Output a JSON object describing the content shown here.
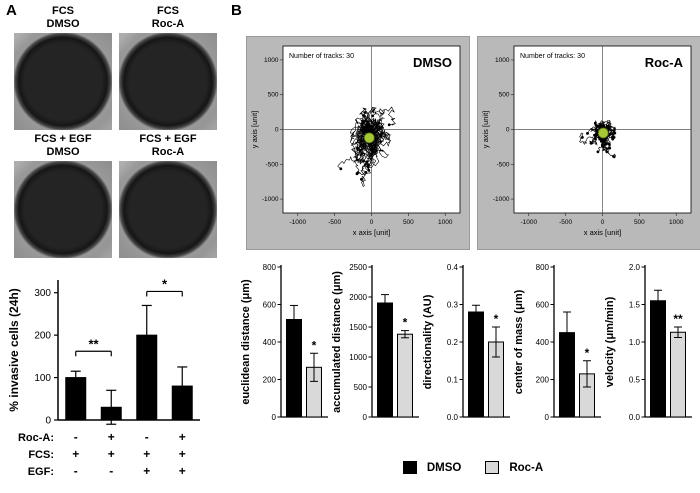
{
  "panel_a": {
    "label": "A",
    "well_labels": [
      {
        "line1": "FCS",
        "line2": "DMSO"
      },
      {
        "line1": "FCS",
        "line2": "Roc-A"
      },
      {
        "line1": "FCS + EGF",
        "line2": "DMSO"
      },
      {
        "line1": "FCS + EGF",
        "line2": "Roc-A"
      }
    ]
  },
  "panel_b": {
    "label": "B",
    "legend": [
      {
        "label": "DMSO",
        "color": "#000000"
      },
      {
        "label": "Roc-A",
        "color": "#d9d9d9"
      }
    ]
  },
  "chart_data": [
    {
      "id": "invasion",
      "type": "bar",
      "ylabel": "% invasive cells (24h)",
      "ylim": [
        0,
        330
      ],
      "yticks": [
        0,
        100,
        200,
        300
      ],
      "ytick_labels": [
        "0",
        "100",
        "200",
        "300"
      ],
      "categories": [
        "FCS",
        "FCS + Roc-A",
        "FCS + EGF",
        "FCS + EGF + Roc-A"
      ],
      "values": [
        100,
        30,
        200,
        80
      ],
      "errors": [
        15,
        40,
        70,
        45
      ],
      "bar_color": "#000000",
      "significance": [
        {
          "from": 0,
          "to": 1,
          "label": "**",
          "y": 162
        },
        {
          "from": 2,
          "to": 3,
          "label": "*",
          "y": 303
        }
      ],
      "condition_rows": [
        {
          "label": "Roc-A:",
          "signs": [
            "-",
            "+",
            "-",
            "+"
          ]
        },
        {
          "label": "FCS:",
          "signs": [
            "+",
            "+",
            "+",
            "+"
          ]
        },
        {
          "label": "EGF:",
          "signs": [
            "-",
            "-",
            "+",
            "+"
          ]
        }
      ]
    },
    {
      "id": "tracks_dmso",
      "type": "scatter-tracks",
      "title": "DMSO",
      "annotation": "Number of tracks: 30",
      "annotation_color": "#dd2222",
      "xlabel": "x axis [unit]",
      "ylabel": "y axis [unit]",
      "xlim": [
        -1200,
        1200
      ],
      "ylim": [
        -1200,
        1200
      ],
      "xticks": [
        -1000,
        -500,
        0,
        500,
        1000
      ],
      "yticks": [
        -1000,
        -500,
        0,
        500,
        1000
      ],
      "n_tracks": 30,
      "seed": 7,
      "step": 55,
      "bias_y": -6,
      "center_of_mass": [
        -30,
        -120
      ],
      "com_color": "#a6c836"
    },
    {
      "id": "tracks_roca",
      "type": "scatter-tracks",
      "title": "Roc-A",
      "annotation": "Number of tracks: 30",
      "annotation_color": "#dd2222",
      "xlabel": "x axis [unit]",
      "ylabel": "y axis [unit]",
      "xlim": [
        -1200,
        1200
      ],
      "ylim": [
        -1200,
        1200
      ],
      "xticks": [
        -1000,
        -500,
        0,
        500,
        1000
      ],
      "yticks": [
        -1000,
        -500,
        0,
        500,
        1000
      ],
      "n_tracks": 30,
      "seed": 13,
      "step": 26,
      "bias_y": -2,
      "center_of_mass": [
        10,
        -50
      ],
      "com_color": "#a6c836"
    },
    {
      "id": "euclidean_distance",
      "type": "bar",
      "ylabel": "euclidean distance (μm)",
      "ylim": [
        0,
        800
      ],
      "yticks": [
        0,
        200,
        400,
        600,
        800
      ],
      "ytick_labels": [
        "0",
        "200",
        "400",
        "600",
        "800"
      ],
      "categories": [
        "DMSO",
        "Roc-A"
      ],
      "values": [
        520,
        265
      ],
      "errors": [
        75,
        75
      ],
      "colors": [
        "#000000",
        "#d9d9d9"
      ],
      "significance_labels": [
        "",
        "*"
      ]
    },
    {
      "id": "accumulated_distance",
      "type": "bar",
      "ylabel": "accumulated distance (μm)",
      "ylim": [
        0,
        2500
      ],
      "yticks": [
        0,
        500,
        1000,
        1500,
        2000,
        2500
      ],
      "ytick_labels": [
        "0",
        "500",
        "1000",
        "1500",
        "2000",
        "2500"
      ],
      "categories": [
        "DMSO",
        "Roc-A"
      ],
      "values": [
        1900,
        1380
      ],
      "errors": [
        140,
        60
      ],
      "colors": [
        "#000000",
        "#d9d9d9"
      ],
      "significance_labels": [
        "",
        "*"
      ]
    },
    {
      "id": "directionality",
      "type": "bar",
      "ylabel": "directionality (AU)",
      "ylim": [
        0,
        0.4
      ],
      "yticks": [
        0,
        0.1,
        0.2,
        0.3,
        0.4
      ],
      "ytick_labels": [
        "0.0",
        "0.1",
        "0.2",
        "0.3",
        "0.4"
      ],
      "categories": [
        "DMSO",
        "Roc-A"
      ],
      "values": [
        0.28,
        0.2
      ],
      "errors": [
        0.018,
        0.04
      ],
      "colors": [
        "#000000",
        "#d9d9d9"
      ],
      "significance_labels": [
        "",
        "*"
      ]
    },
    {
      "id": "center_of_mass",
      "type": "bar",
      "ylabel": "center of mass (μm)",
      "ylim": [
        0,
        800
      ],
      "yticks": [
        0,
        200,
        400,
        600,
        800
      ],
      "ytick_labels": [
        "0",
        "200",
        "400",
        "600",
        "800"
      ],
      "categories": [
        "DMSO",
        "Roc-A"
      ],
      "values": [
        450,
        230
      ],
      "errors": [
        110,
        70
      ],
      "colors": [
        "#000000",
        "#d9d9d9"
      ],
      "significance_labels": [
        "",
        "*"
      ]
    },
    {
      "id": "velocity",
      "type": "bar",
      "ylabel": "velocity (μm/min)",
      "ylim": [
        0,
        2.0
      ],
      "yticks": [
        0,
        0.5,
        1.0,
        1.5,
        2.0
      ],
      "ytick_labels": [
        "0.0",
        "0.5",
        "1.0",
        "1.5",
        "2.0"
      ],
      "categories": [
        "DMSO",
        "Roc-A"
      ],
      "values": [
        1.55,
        1.13
      ],
      "errors": [
        0.14,
        0.07
      ],
      "colors": [
        "#000000",
        "#d9d9d9"
      ],
      "significance_labels": [
        "",
        "**"
      ]
    }
  ]
}
